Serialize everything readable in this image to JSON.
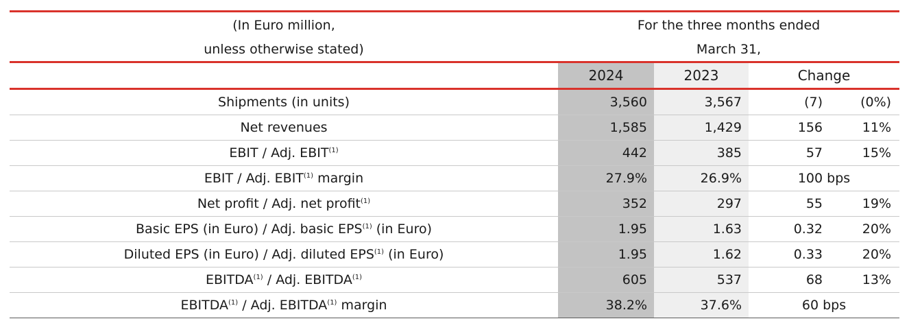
{
  "header": {
    "left_line1": "(In Euro million,",
    "left_line2": "unless otherwise stated)",
    "period_line1": "For the three months ended",
    "period_line2": "March 31,",
    "col_2024": "2024",
    "col_2023": "2023",
    "col_change": "Change"
  },
  "rows": [
    {
      "label": "Shipments (in units)",
      "sup": "",
      "label_mid": "",
      "sup2": "",
      "label_tail": "",
      "v2024": "3,560",
      "v2023": "3,567",
      "change": "(7)",
      "pct": "(0%)"
    },
    {
      "label": "Net revenues",
      "sup": "",
      "label_mid": "",
      "sup2": "",
      "label_tail": "",
      "v2024": "1,585",
      "v2023": "1,429",
      "change": "156",
      "pct": "11%"
    },
    {
      "label": "EBIT / Adj. EBIT",
      "sup": "(1)",
      "label_mid": "",
      "sup2": "",
      "label_tail": "",
      "v2024": "442",
      "v2023": "385",
      "change": "57",
      "pct": "15%"
    },
    {
      "label": "EBIT / Adj. EBIT",
      "sup": "(1)",
      "label_mid": " margin",
      "sup2": "",
      "label_tail": "",
      "v2024": "27.9%",
      "v2023": "26.9%",
      "change": "100 bps",
      "pct": ""
    },
    {
      "label": "Net profit / Adj. net profit",
      "sup": "(1)",
      "label_mid": "",
      "sup2": "",
      "label_tail": "",
      "v2024": "352",
      "v2023": "297",
      "change": "55",
      "pct": "19%"
    },
    {
      "label": "Basic EPS (in Euro) / Adj. basic EPS",
      "sup": "(1)",
      "label_mid": " (in Euro)",
      "sup2": "",
      "label_tail": "",
      "v2024": "1.95",
      "v2023": "1.63",
      "change": "0.32",
      "pct": "20%"
    },
    {
      "label": "Diluted EPS (in Euro) / Adj. diluted EPS",
      "sup": "(1)",
      "label_mid": " (in Euro)",
      "sup2": "",
      "label_tail": "",
      "v2024": "1.95",
      "v2023": "1.62",
      "change": "0.33",
      "pct": "20%"
    },
    {
      "label": "EBITDA",
      "sup": "(1)",
      "label_mid": " / Adj. EBITDA",
      "sup2": "(1)",
      "label_tail": "",
      "v2024": "605",
      "v2023": "537",
      "change": "68",
      "pct": "13%"
    },
    {
      "label": "EBITDA",
      "sup": "(1)",
      "label_mid": " / Adj. EBITDA",
      "sup2": "(1)",
      "label_tail": " margin",
      "v2024": "38.2%",
      "v2023": "37.6%",
      "change": "60 bps",
      "pct": ""
    }
  ],
  "colors": {
    "accent_rule": "#d9322b",
    "col_2024_bg": "#c3c3c3",
    "col_2023_bg": "#efefef"
  }
}
